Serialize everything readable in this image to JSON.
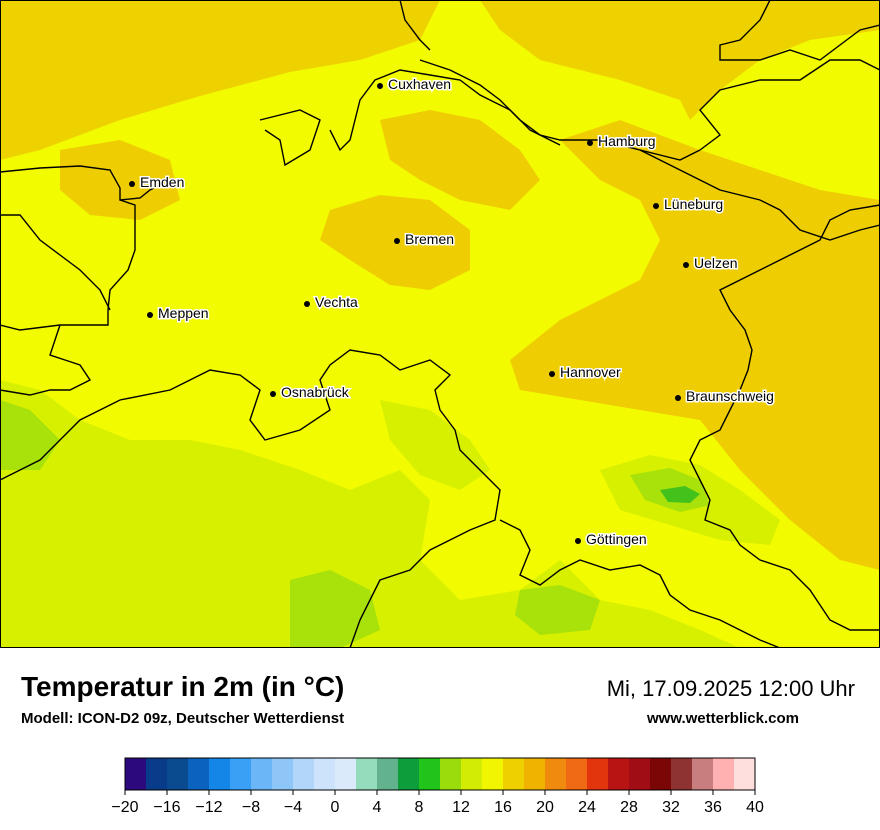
{
  "map": {
    "cities": [
      {
        "name": "Cuxhaven"
      },
      {
        "name": "Hamburg"
      },
      {
        "name": "Emden"
      },
      {
        "name": "Lüneburg"
      },
      {
        "name": "Bremen"
      },
      {
        "name": "Uelzen"
      },
      {
        "name": "Vechta"
      },
      {
        "name": "Meppen"
      },
      {
        "name": "Hannover"
      },
      {
        "name": "Osnabrück"
      },
      {
        "name": "Braunschweig"
      },
      {
        "name": "Göttingen"
      }
    ]
  },
  "footer": {
    "title": "Temperatur in 2m (in °C)",
    "model": "Modell: ICON-D2 09z, Deutscher Wetterdienst",
    "datetime": "Mi, 17.09.2025 12:00 Uhr",
    "website": "www.wetterblick.com"
  },
  "colorbar": {
    "colors": [
      "#2c0a7d",
      "#083b8a",
      "#0a4a8f",
      "#0c63bf",
      "#1486e8",
      "#3aa0f5",
      "#6ab6f7",
      "#8ec6f8",
      "#b2d6fa",
      "#cce3fb",
      "#dbeafb",
      "#95dcbc",
      "#62b38d",
      "#0d9e3b",
      "#21c41a",
      "#9bdc0c",
      "#d2ec06",
      "#f2f500",
      "#eed000",
      "#f0b400",
      "#f08a0f",
      "#f06a16",
      "#e3350d",
      "#b81414",
      "#a00d15",
      "#7a0606",
      "#8e3232",
      "#c87e7e",
      "#ffb0b0",
      "#ffdede"
    ],
    "ticks": [
      "−20",
      "−16",
      "−12",
      "−8",
      "−4",
      "0",
      "4",
      "8",
      "12",
      "16",
      "20",
      "24",
      "28",
      "32",
      "36",
      "40"
    ],
    "range": [
      -20,
      40
    ]
  },
  "palette": {
    "sea": "#eed200",
    "warm_land": "#eece02",
    "land": "#f2fb00",
    "cool_land": "#d6f000",
    "cooler_land": "#a8e20a",
    "coolest": "#44c21c"
  }
}
